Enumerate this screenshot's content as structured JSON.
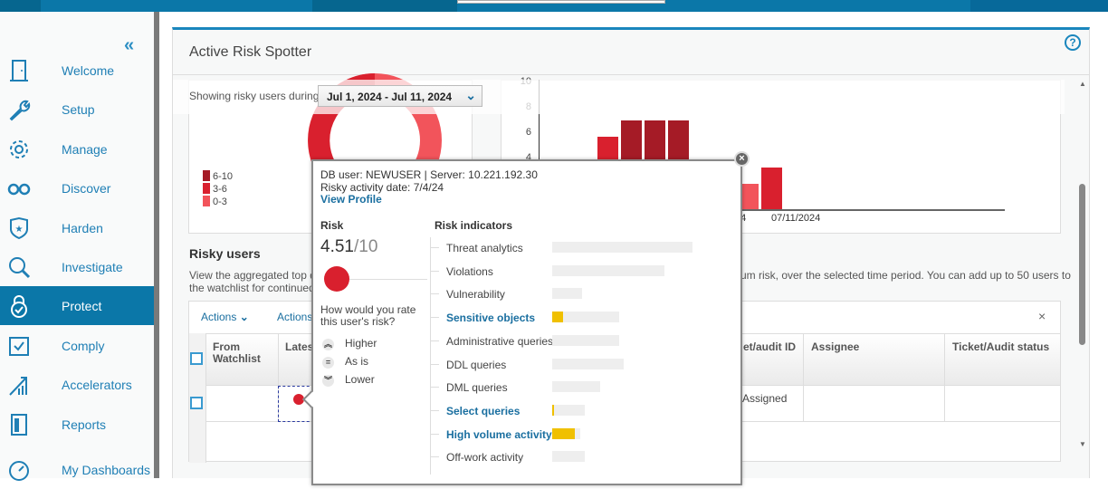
{
  "sidebar": {
    "collapse_icon": "double-chevron-left",
    "items": [
      {
        "label": "Welcome",
        "icon": "door-icon"
      },
      {
        "label": "Setup",
        "icon": "wrench-icon"
      },
      {
        "label": "Manage",
        "icon": "gear-icon"
      },
      {
        "label": "Discover",
        "icon": "glasses-icon"
      },
      {
        "label": "Harden",
        "icon": "shield-star-icon"
      },
      {
        "label": "Investigate",
        "icon": "magnifier-icon"
      },
      {
        "label": "Protect",
        "icon": "lock-check-icon",
        "active": true
      },
      {
        "label": "Comply",
        "icon": "checkbox-doc-icon"
      },
      {
        "label": "Accelerators",
        "icon": "chart-arrow-icon"
      },
      {
        "label": "Reports",
        "icon": "report-icon"
      },
      {
        "label": "My Dashboards",
        "icon": "gauge-icon"
      }
    ]
  },
  "panel": {
    "title": "Active Risk Spotter",
    "help": "?"
  },
  "filter": {
    "label": "Showing risky users during",
    "value": "Jul 1, 2024 - Jul 11, 2024"
  },
  "donut": {
    "legend": [
      "6-10",
      "3-6",
      "0-3"
    ],
    "colors": {
      "high": "#a51b26",
      "medium": "#d9202e",
      "low": "#f2545b"
    }
  },
  "chart_data": {
    "type": "bar",
    "y_ticks": [
      "10",
      "8",
      "6",
      "4"
    ],
    "ylim": [
      0,
      10
    ],
    "x_tick_labels": [
      "24",
      "07/11/2024"
    ],
    "values": [
      5.7,
      7,
      7,
      7,
      2,
      3.3
    ],
    "levels": [
      "medium",
      "high",
      "high",
      "high",
      "low",
      "medium"
    ]
  },
  "risky_users": {
    "title": "Risky users",
    "description_1": "View the aggregated top da",
    "description_2": "the watchlist for continued",
    "description_right": "um risk, over the selected time period. You can add up to 50 users to",
    "actions_1": "Actions",
    "actions_2": "Actions",
    "clear": "×",
    "columns": [
      "From Watchlist",
      "Lates",
      "et/audit ID",
      "Assignee",
      "Ticket/Audit status"
    ],
    "row": {
      "audit_status": "Assigned"
    }
  },
  "popup": {
    "line1": "DB user: NEWUSER | Server: 10.221.192.30",
    "line2": "Risky activity date: 7/4/24",
    "view_profile": "View Profile",
    "risk_label": "Risk",
    "risk_value": "4.51",
    "risk_max": "/10",
    "risk_fraction": 0.451,
    "rate_question": "How would you rate this user's risk?",
    "rate_options": [
      {
        "label": "Higher",
        "icon": "double-chevron-up"
      },
      {
        "label": "As is",
        "icon": "equals"
      },
      {
        "label": "Lower",
        "icon": "double-chevron-down"
      }
    ],
    "indicators_label": "Risk indicators",
    "indicators": [
      {
        "label": "Threat analytics",
        "level": 1.0,
        "highlight": 0,
        "link": false
      },
      {
        "label": "Violations",
        "level": 0.8,
        "highlight": 0,
        "link": false
      },
      {
        "label": "Vulnerability",
        "level": 0.21,
        "highlight": 0,
        "link": false
      },
      {
        "label": "Sensitive objects",
        "level": 0.48,
        "highlight": 0.08,
        "link": true
      },
      {
        "label": "Administrative queries",
        "level": 0.48,
        "highlight": 0,
        "link": false
      },
      {
        "label": "DDL queries",
        "level": 0.51,
        "highlight": 0,
        "link": false
      },
      {
        "label": "DML queries",
        "level": 0.34,
        "highlight": 0,
        "link": false
      },
      {
        "label": "Select queries",
        "level": 0.23,
        "highlight": 0.01,
        "link": true
      },
      {
        "label": "High volume activity",
        "level": 0.2,
        "highlight": 0.16,
        "link": true
      },
      {
        "label": "Off-work activity",
        "level": 0.23,
        "highlight": 0,
        "link": false
      }
    ],
    "highlight_color": "#f0c000"
  }
}
